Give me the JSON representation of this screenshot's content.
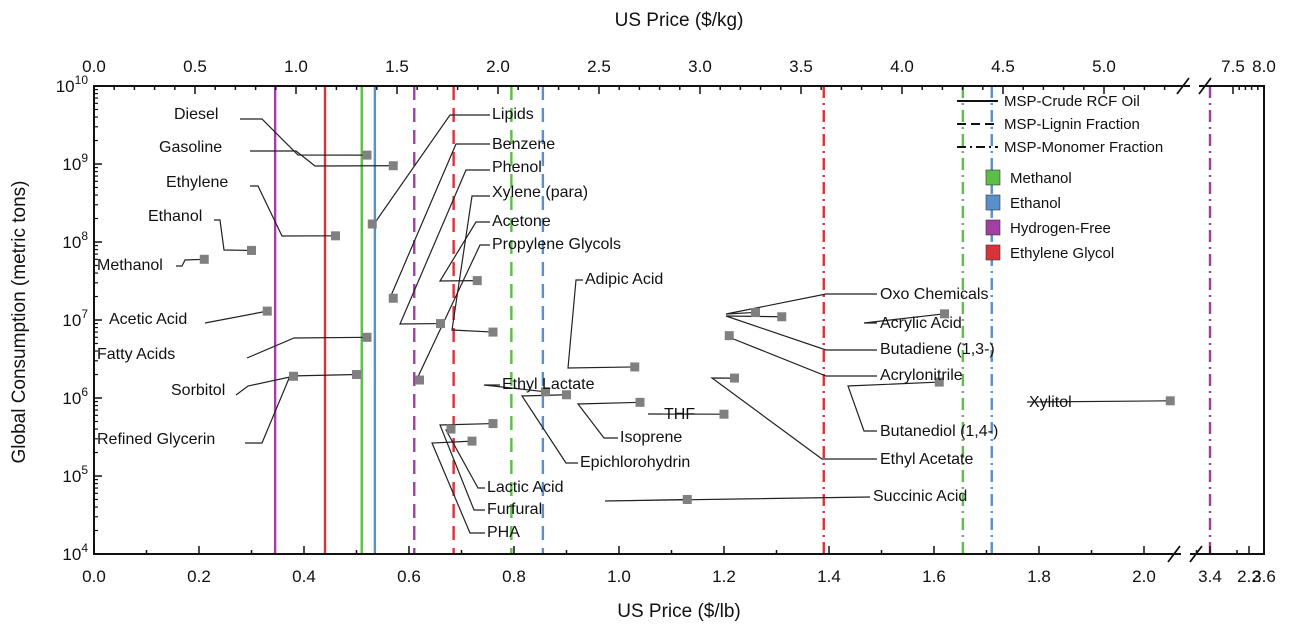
{
  "chart_data": {
    "type": "scatter",
    "x_bottom": {
      "label": "US Price ($/lb)",
      "range": [
        0,
        2.4
      ],
      "break_values": [
        3.4,
        3.6
      ],
      "tick_labels": [
        "0.0",
        "0.2",
        "0.4",
        "0.6",
        "0.8",
        "1.0",
        "1.2",
        "1.4",
        "1.6",
        "1.8",
        "2.0",
        "2.2",
        "3.4",
        "3.6"
      ]
    },
    "x_top": {
      "label": "US Price ($/kg)",
      "tick_labels": [
        "0.0",
        "0.5",
        "1.0",
        "1.5",
        "2.0",
        "2.5",
        "3.0",
        "3.5",
        "4.0",
        "4.5",
        "5.0",
        "7.5",
        "8.0"
      ]
    },
    "y": {
      "label": "Global Consumption (metric tons)",
      "scale": "log",
      "range": [
        10000,
        10000000000
      ],
      "tick_labels": [
        {
          "base": "10",
          "exp": "4"
        },
        {
          "base": "10",
          "exp": "5"
        },
        {
          "base": "10",
          "exp": "6"
        },
        {
          "base": "10",
          "exp": "7"
        },
        {
          "base": "10",
          "exp": "8"
        },
        {
          "base": "10",
          "exp": "9"
        },
        {
          "base": "10",
          "exp": "10"
        }
      ]
    },
    "points": [
      {
        "name": "Diesel",
        "x": 0.52,
        "y": 1300000000
      },
      {
        "name": "Gasoline",
        "x": 0.57,
        "y": 950000000
      },
      {
        "name": "Ethylene",
        "x": 0.46,
        "y": 120000000
      },
      {
        "name": "Ethanol",
        "x": 0.3,
        "y": 78000000
      },
      {
        "name": "Methanol",
        "x": 0.21,
        "y": 60000000
      },
      {
        "name": "Acetic Acid",
        "x": 0.33,
        "y": 13000000
      },
      {
        "name": "Fatty Acids",
        "x": 0.52,
        "y": 6000000
      },
      {
        "name": "Sorbitol",
        "x": 0.38,
        "y": 1900000
      },
      {
        "name": "Refined Glycerin",
        "x": 0.5,
        "y": 2000000
      },
      {
        "name": "Lipids",
        "x": 0.53,
        "y": 170000000
      },
      {
        "name": "Benzene",
        "x": 0.57,
        "y": 19000000
      },
      {
        "name": "Phenol",
        "x": 0.66,
        "y": 9000000
      },
      {
        "name": "Xylene (para)",
        "x": 0.76,
        "y": 7000000
      },
      {
        "name": "Acetone",
        "x": 0.73,
        "y": 32000000
      },
      {
        "name": "Propylene Glycols",
        "x": 0.62,
        "y": 1700000
      },
      {
        "name": "Ethyl Lactate",
        "x": 0.86,
        "y": 1200000
      },
      {
        "name": "Adipic Acid",
        "x": 1.03,
        "y": 2500000
      },
      {
        "name": "Epichlorohydrin",
        "x": 0.9,
        "y": 1100000
      },
      {
        "name": "Isoprene",
        "x": 1.04,
        "y": 880000
      },
      {
        "name": "THF",
        "x": 1.2,
        "y": 620000
      },
      {
        "name": "Lactic Acid",
        "x": 0.68,
        "y": 400000
      },
      {
        "name": "Furfural",
        "x": 0.76,
        "y": 470000
      },
      {
        "name": "PHA",
        "x": 0.72,
        "y": 280000
      },
      {
        "name": "Succinic Acid",
        "x": 1.13,
        "y": 50000
      },
      {
        "name": "Oxo Chemicals",
        "x": 1.26,
        "y": 12500000
      },
      {
        "name": "Acrylic Acid",
        "x": 1.62,
        "y": 12000000
      },
      {
        "name": "Butadiene (1,3-)",
        "x": 1.31,
        "y": 11000000
      },
      {
        "name": "Acrylonitrile",
        "x": 1.21,
        "y": 6300000
      },
      {
        "name": "Butanediol (1,4-)",
        "x": 1.61,
        "y": 1600000
      },
      {
        "name": "Ethyl Acetate",
        "x": 1.22,
        "y": 1800000
      },
      {
        "name": "Xylitol",
        "x": 2.05,
        "y": 920000
      }
    ],
    "msp_lines": [
      {
        "scenario": "Hydrogen-Free",
        "fraction": "MSP-Crude RCF Oil",
        "x": 0.345
      },
      {
        "scenario": "Ethylene Glycol",
        "fraction": "MSP-Crude RCF Oil",
        "x": 0.44
      },
      {
        "scenario": "Methanol",
        "fraction": "MSP-Crude RCF Oil",
        "x": 0.51
      },
      {
        "scenario": "Ethanol",
        "fraction": "MSP-Crude RCF Oil",
        "x": 0.535
      },
      {
        "scenario": "Hydrogen-Free",
        "fraction": "MSP-Lignin Fraction",
        "x": 0.61
      },
      {
        "scenario": "Ethylene Glycol",
        "fraction": "MSP-Lignin Fraction",
        "x": 0.685
      },
      {
        "scenario": "Methanol",
        "fraction": "MSP-Lignin Fraction",
        "x": 0.795
      },
      {
        "scenario": "Ethanol",
        "fraction": "MSP-Lignin Fraction",
        "x": 0.855
      },
      {
        "scenario": "Ethylene Glycol",
        "fraction": "MSP-Monomer Fraction",
        "x": 1.39
      },
      {
        "scenario": "Methanol",
        "fraction": "MSP-Monomer Fraction",
        "x": 1.655
      },
      {
        "scenario": "Ethanol",
        "fraction": "MSP-Monomer Fraction",
        "x": 1.71
      },
      {
        "scenario": "Hydrogen-Free",
        "fraction": "MSP-Monomer Fraction",
        "x": 3.4
      }
    ],
    "legend": {
      "position": "top-right",
      "line_styles": [
        {
          "label": "MSP-Crude RCF Oil",
          "dash": "solid"
        },
        {
          "label": "MSP-Lignin Fraction",
          "dash": "dashed"
        },
        {
          "label": "MSP-Monomer Fraction",
          "dash": "dashdot"
        }
      ],
      "scenarios": [
        {
          "label": "Methanol",
          "color": "#5cbd48"
        },
        {
          "label": "Ethanol",
          "color": "#5b8fc9"
        },
        {
          "label": "Hydrogen-Free",
          "color": "#a13fa3"
        },
        {
          "label": "Ethylene Glycol",
          "color": "#d9333a"
        }
      ]
    },
    "marker_color": "#808080"
  }
}
